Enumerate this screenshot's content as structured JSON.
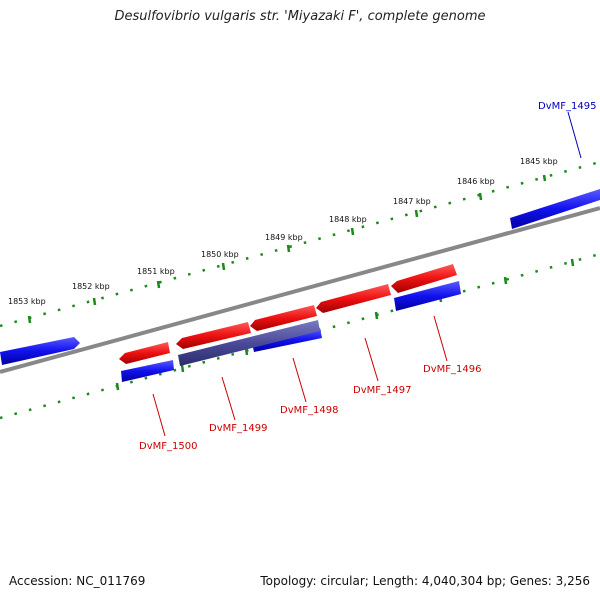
{
  "title": "Desulfovibrio vulgaris str. 'Miyazaki F', complete genome",
  "footer": {
    "accession": "Accession: NC_011769",
    "summary": "Topology: circular; Length: 4,040,304 bp; Genes: 3,256"
  },
  "colors": {
    "forward": "#ee1111",
    "reverse": "#1111ee",
    "overlap": "#44449a",
    "backbone": "#888888",
    "ticks": "#1a8a1a",
    "label_forward": "#cc0000",
    "label_reverse": "#0000bb"
  },
  "kbp_labels": [
    "1845 kbp",
    "1846 kbp",
    "1847 kbp",
    "1848 kbp",
    "1849 kbp",
    "1850 kbp",
    "1851 kbp",
    "1852 kbp",
    "1853 kbp"
  ],
  "gene_labels": {
    "g1495": "DvMF_1495",
    "g1496": "DvMF_1496",
    "g1497": "DvMF_1497",
    "g1498": "DvMF_1498",
    "g1499": "DvMF_1499",
    "g1500": "DvMF_1500"
  }
}
